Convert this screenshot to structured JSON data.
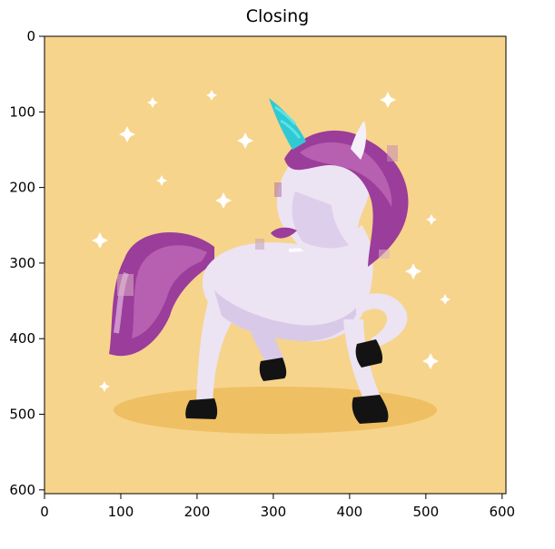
{
  "figure": {
    "title": "Closing"
  },
  "axes": {
    "x_ticks": [
      "0",
      "100",
      "200",
      "300",
      "400",
      "500",
      "600"
    ],
    "y_ticks": [
      "0",
      "100",
      "200",
      "300",
      "400",
      "500",
      "600"
    ],
    "xlim": [
      0,
      605
    ],
    "ylim": [
      605,
      0
    ]
  },
  "image": {
    "subject": "unicorn",
    "colors": {
      "background": "#f6d48b",
      "shadow": "#efbf63",
      "body": "#ece3f3",
      "body_shade": "#d9c9e8",
      "mane": "#9b3d9a",
      "mane_light": "#c06bb8",
      "horn": "#31c9d3",
      "hoof": "#131313",
      "star": "#ffffff"
    }
  }
}
